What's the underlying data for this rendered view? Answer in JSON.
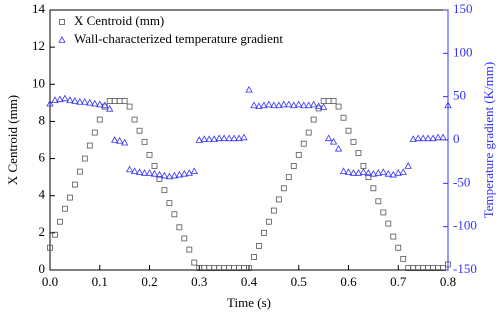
{
  "chart_data": {
    "type": "scatter",
    "xlabel": "Time (s)",
    "ylabel": "X Centroid (mm)",
    "y2label": "Temperature gradient (K/mm)",
    "x": [
      0,
      0.01,
      0.02,
      0.03,
      0.04,
      0.05,
      0.06,
      0.07,
      0.08,
      0.09,
      0.1,
      0.11,
      0.12,
      0.13,
      0.14,
      0.15,
      0.16,
      0.17,
      0.18,
      0.19,
      0.2,
      0.21,
      0.22,
      0.23,
      0.24,
      0.25,
      0.26,
      0.27,
      0.28,
      0.29,
      0.3,
      0.31,
      0.32,
      0.33,
      0.34,
      0.35,
      0.36,
      0.37,
      0.38,
      0.39,
      0.4,
      0.41,
      0.42,
      0.43,
      0.44,
      0.45,
      0.46,
      0.47,
      0.48,
      0.49,
      0.5,
      0.51,
      0.52,
      0.53,
      0.54,
      0.55,
      0.56,
      0.57,
      0.58,
      0.59,
      0.6,
      0.61,
      0.62,
      0.63,
      0.64,
      0.65,
      0.66,
      0.67,
      0.68,
      0.69,
      0.7,
      0.71,
      0.72,
      0.73,
      0.74,
      0.75,
      0.76,
      0.77,
      0.78,
      0.79,
      0.8
    ],
    "series": [
      {
        "name": "X Centroid (mm)",
        "color": "#555555",
        "marker": "square",
        "values": [
          1.2,
          1.9,
          2.6,
          3.3,
          3.9,
          4.6,
          5.3,
          6.0,
          6.7,
          7.4,
          8.1,
          8.8,
          9.1,
          9.1,
          9.1,
          9.1,
          8.8,
          8.1,
          7.5,
          6.9,
          6.2,
          5.6,
          4.9,
          4.3,
          3.6,
          3.0,
          2.3,
          1.7,
          1.1,
          0.4,
          0.1,
          0.1,
          0.1,
          0.1,
          0.1,
          0.1,
          0.1,
          0.1,
          0.1,
          0.1,
          0.1,
          0.7,
          1.3,
          2.0,
          2.6,
          3.2,
          3.8,
          4.4,
          5.0,
          5.6,
          6.2,
          6.8,
          7.4,
          8.1,
          8.7,
          9.1,
          9.1,
          9.1,
          8.8,
          8.2,
          7.5,
          6.9,
          6.3,
          5.6,
          5.0,
          4.4,
          3.7,
          3.1,
          2.5,
          1.8,
          1.2,
          0.6,
          0.1,
          0.1,
          0.1,
          0.1,
          0.1,
          0.1,
          0.1,
          0.1,
          0.3
        ]
      },
      {
        "name": "Wall-characterized temperature gradient",
        "color": "#3333ff",
        "marker": "triangle",
        "axis": "y2",
        "values": [
          42,
          46,
          47,
          48,
          46,
          45,
          44,
          44,
          43,
          42,
          41,
          40,
          36,
          0,
          -1,
          -3,
          -34,
          -36,
          -37,
          -38,
          -38,
          -39,
          -40,
          -41,
          -42,
          -41,
          -40,
          -39,
          -38,
          -36,
          0,
          1,
          1,
          1,
          2,
          2,
          2,
          2,
          2,
          3,
          58,
          40,
          39,
          40,
          41,
          40,
          40,
          41,
          41,
          40,
          41,
          40,
          40,
          41,
          39,
          38,
          2,
          -2,
          -10,
          -36,
          -37,
          -38,
          -38,
          -37,
          -38,
          -39,
          -38,
          -37,
          -39,
          -40,
          -38,
          -37,
          -30,
          1,
          2,
          2,
          2,
          2,
          3,
          3,
          40
        ]
      }
    ],
    "xlim": [
      0,
      0.8
    ],
    "xticks": [
      {
        "value": 0,
        "label": "0.0"
      },
      0.1,
      0.2,
      0.3,
      0.4,
      0.5,
      0.6,
      0.7,
      0.8
    ],
    "ylim": [
      0,
      14
    ],
    "yticks": [
      0,
      2,
      4,
      6,
      8,
      10,
      12,
      14
    ],
    "y2lim": [
      -150,
      150
    ],
    "y2ticks": [
      -150,
      -100,
      -50,
      0,
      50,
      100,
      150
    ],
    "y2color": "#3333ff",
    "legend": "upper left",
    "grid": false
  }
}
